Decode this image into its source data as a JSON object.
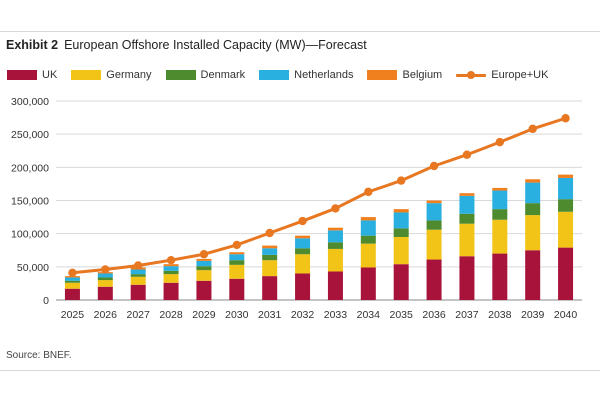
{
  "header": {
    "exhibit_label": "Exhibit 2",
    "title": "European Offshore Installed Capacity (MW)—Forecast"
  },
  "footer": {
    "source": "Source: BNEF."
  },
  "chart_data": {
    "type": "bar",
    "stacked": true,
    "categories": [
      "2025",
      "2026",
      "2027",
      "2028",
      "2029",
      "2030",
      "2031",
      "2032",
      "2033",
      "2034",
      "2035",
      "2036",
      "2037",
      "2038",
      "2039",
      "2040"
    ],
    "series": [
      {
        "name": "UK",
        "color": "#A8133B",
        "values": [
          17000,
          20000,
          23000,
          26000,
          29000,
          32000,
          36000,
          40000,
          43000,
          49000,
          54000,
          61000,
          66000,
          70000,
          75000,
          79000
        ]
      },
      {
        "name": "Germany",
        "color": "#F2C417",
        "values": [
          9000,
          10000,
          12000,
          13000,
          16000,
          21000,
          24000,
          29000,
          34000,
          36000,
          41000,
          45000,
          49000,
          51000,
          53000,
          54000
        ]
      },
      {
        "name": "Denmark",
        "color": "#4E8A2E",
        "values": [
          3000,
          4000,
          4000,
          5000,
          6000,
          7000,
          8000,
          9000,
          10000,
          12000,
          13000,
          14000,
          15000,
          16000,
          18000,
          19000
        ]
      },
      {
        "name": "Netherlands",
        "color": "#29B0E0",
        "values": [
          5000,
          6000,
          7000,
          7000,
          8000,
          9000,
          10000,
          15000,
          18000,
          23000,
          24000,
          26000,
          27000,
          28000,
          31000,
          32000
        ]
      },
      {
        "name": "Belgium",
        "color": "#F07F1E",
        "values": [
          2000,
          2000,
          3000,
          3000,
          3000,
          3000,
          4000,
          4000,
          4000,
          5000,
          5000,
          4000,
          4000,
          4000,
          5000,
          5000
        ]
      }
    ],
    "line_series": {
      "name": "Europe+UK",
      "color": "#E87722",
      "values": [
        41000,
        46000,
        52000,
        60000,
        69000,
        83000,
        101000,
        119000,
        138000,
        163000,
        180000,
        202000,
        219000,
        238000,
        258000,
        274000
      ]
    },
    "ylim": [
      0,
      300000
    ],
    "yticks": [
      "0",
      "50,000",
      "100,000",
      "150,000",
      "200,000",
      "250,000",
      "300,000"
    ],
    "grid": true,
    "legend_position": "top-left",
    "xlabel": "",
    "ylabel": ""
  }
}
